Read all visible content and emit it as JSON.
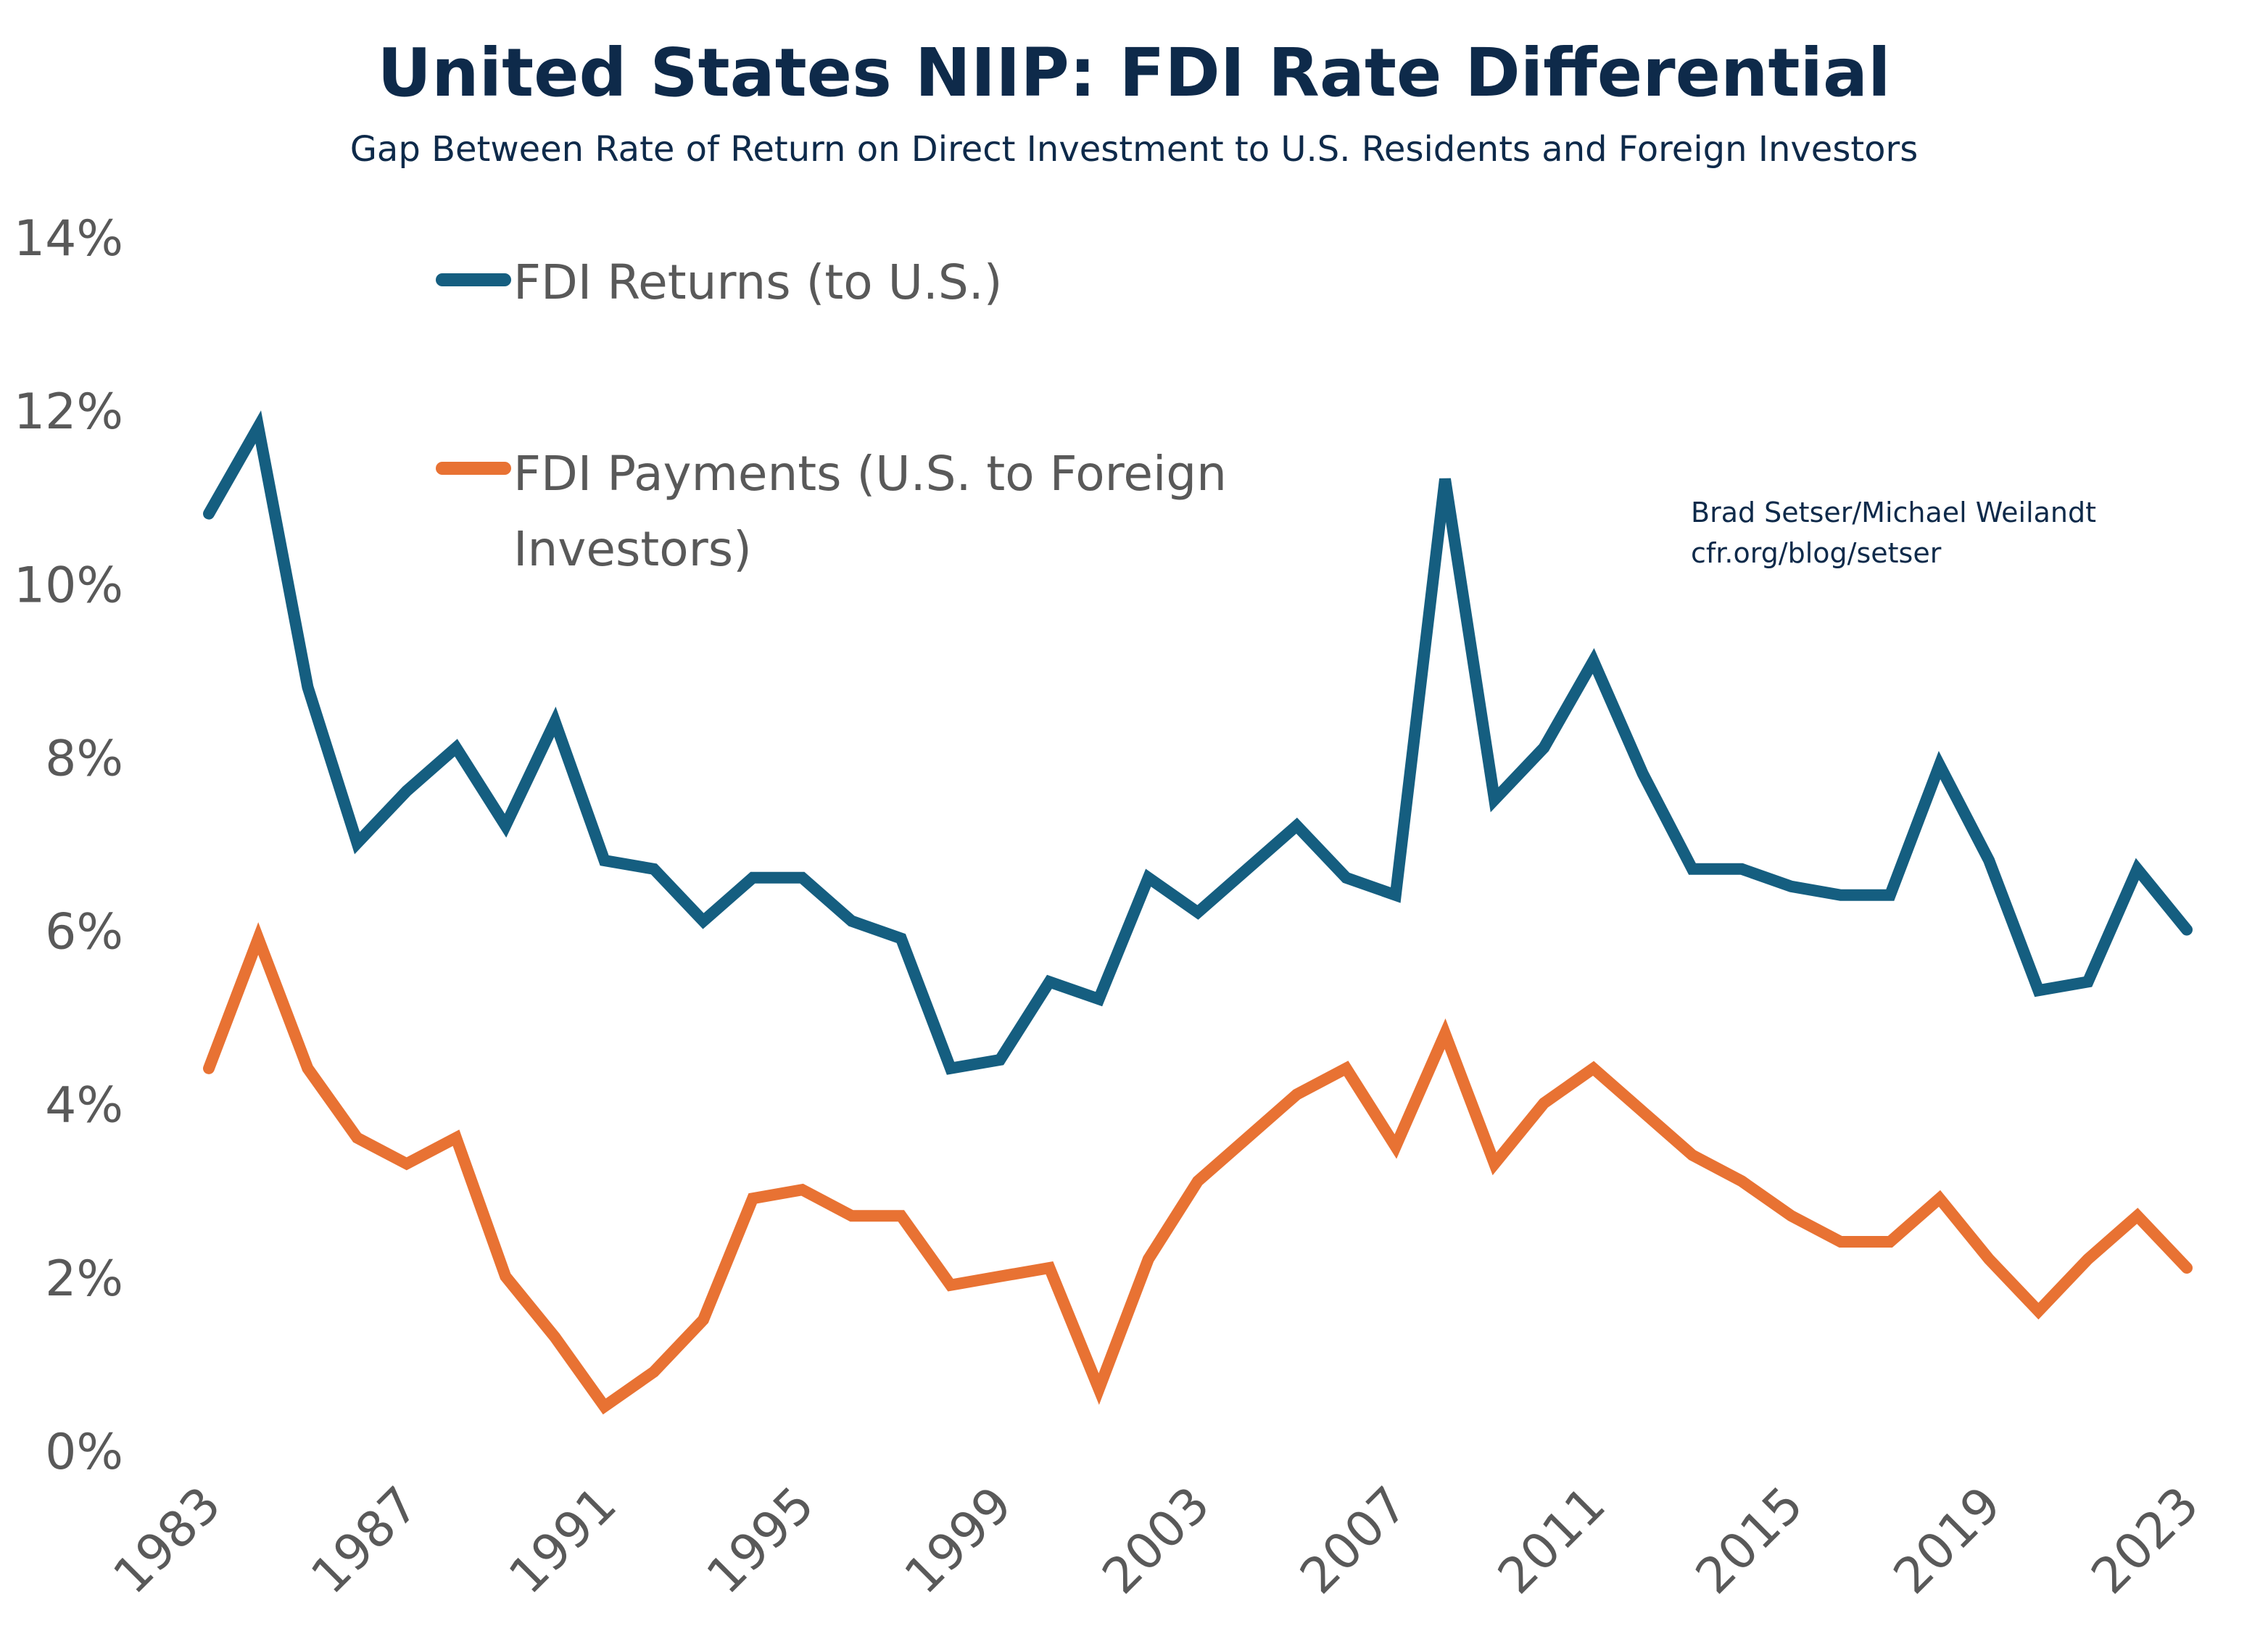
{
  "chart_data": {
    "type": "line",
    "title": "United States NIIP: FDI Rate Differential",
    "subtitle": "Gap Between Rate of Return on Direct Investment to U.S. Residents and Foreign Investors",
    "xlabel": "",
    "ylabel": "",
    "ylim": [
      0,
      14
    ],
    "xlim": [
      1983,
      2023
    ],
    "grid": false,
    "legend_placement": "top-left",
    "y_ticks": [
      0,
      2,
      4,
      6,
      8,
      10,
      12,
      14
    ],
    "y_tick_labels": [
      "0%",
      "2%",
      "4%",
      "6%",
      "8%",
      "10%",
      "12%",
      "14%"
    ],
    "x_ticks": [
      1983,
      1987,
      1991,
      1995,
      1999,
      2003,
      2007,
      2011,
      2015,
      2019,
      2023
    ],
    "x_tick_labels": [
      "1983",
      "1987",
      "1991",
      "1995",
      "1999",
      "2003",
      "2007",
      "2011",
      "2015",
      "2019",
      "2023"
    ],
    "x": [
      1983,
      1984,
      1985,
      1986,
      1987,
      1988,
      1989,
      1990,
      1991,
      1992,
      1993,
      1994,
      1995,
      1996,
      1997,
      1998,
      1999,
      2000,
      2001,
      2002,
      2003,
      2004,
      2005,
      2006,
      2007,
      2008,
      2009,
      2010,
      2011,
      2012,
      2013,
      2014,
      2015,
      2016,
      2017,
      2018,
      2019,
      2020,
      2021,
      2022,
      2023
    ],
    "series": [
      {
        "name": "FDI Returns (to U.S.)",
        "color": "#155E80",
        "values": [
          10.8,
          11.8,
          8.8,
          7.0,
          7.6,
          8.1,
          7.2,
          8.4,
          6.8,
          6.7,
          6.1,
          6.6,
          6.6,
          6.1,
          5.9,
          4.4,
          4.5,
          5.4,
          5.2,
          6.6,
          6.2,
          6.7,
          7.2,
          6.6,
          6.4,
          11.2,
          7.5,
          8.1,
          9.1,
          7.8,
          6.7,
          6.7,
          6.5,
          6.4,
          6.4,
          7.9,
          6.8,
          5.3,
          5.4,
          6.7,
          6.0
        ]
      },
      {
        "name": "FDI Payments (U.S. to Foreign Investors)",
        "name_lines": [
          "FDI Payments (U.S. to Foreign",
          "Investors)"
        ],
        "color": "#E87233",
        "values": [
          4.4,
          5.9,
          4.4,
          3.6,
          3.3,
          3.6,
          2.0,
          1.3,
          0.5,
          0.9,
          1.5,
          2.9,
          3.0,
          2.7,
          2.7,
          1.9,
          2.0,
          2.1,
          0.7,
          2.2,
          3.1,
          3.6,
          4.1,
          4.4,
          3.5,
          4.8,
          3.3,
          4.0,
          4.4,
          3.9,
          3.4,
          3.1,
          2.7,
          2.4,
          2.4,
          2.9,
          2.2,
          1.6,
          2.2,
          2.7,
          2.1
        ]
      }
    ],
    "annotation": [
      "Brad Setser/Michael Weilandt",
      "cfr.org/blog/setser"
    ]
  },
  "colors": {
    "title": "#0E2A4A",
    "axis_text": "#595959"
  }
}
